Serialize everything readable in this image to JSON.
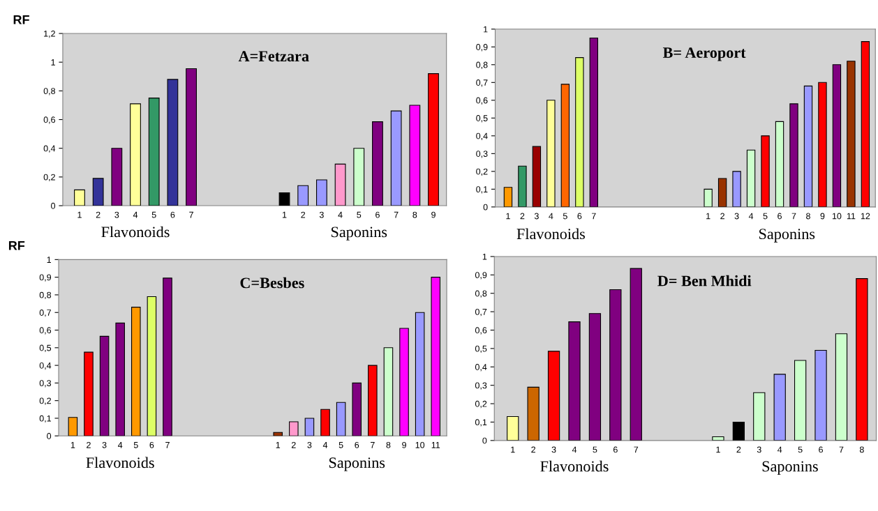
{
  "chart_data": [
    {
      "type": "bar",
      "title": "A=Fetzara",
      "ylabel": "RF",
      "categories": [
        "1",
        "2",
        "3",
        "4",
        "5",
        "6",
        "7",
        null,
        null,
        null,
        null,
        "1",
        "2",
        "3",
        "4",
        "5",
        "6",
        "7",
        "8",
        "9"
      ],
      "series": [
        {
          "name": "Flavonoids",
          "values": [
            0.11,
            0.19,
            0.4,
            0.71,
            0.75,
            0.88,
            0.955,
            null,
            null,
            null,
            null,
            null,
            null,
            null,
            null,
            null,
            null,
            null,
            null,
            null
          ],
          "colors": [
            "#ffff99",
            "#333399",
            "#800080",
            "#ffff99",
            "#339966",
            "#333399",
            "#800080",
            null,
            null,
            null,
            null,
            null,
            null,
            null,
            null,
            null,
            null,
            null,
            null,
            null
          ]
        },
        {
          "name": "Saponins",
          "values": [
            null,
            null,
            null,
            null,
            null,
            null,
            null,
            null,
            null,
            null,
            null,
            0.09,
            0.14,
            0.18,
            0.29,
            0.4,
            0.585,
            0.66,
            0.7,
            0.92
          ],
          "colors": [
            null,
            null,
            null,
            null,
            null,
            null,
            null,
            null,
            null,
            null,
            null,
            "#000000",
            "#9999ff",
            "#9999ff",
            "#ff99cc",
            "#ccffcc",
            "#800080",
            "#9999ff",
            "#ff00ff",
            "#ff0000"
          ]
        }
      ],
      "ylim": [
        0,
        1.2
      ],
      "yticks": [
        0,
        {
          "value": 0.2,
          "label": "0,2"
        },
        {
          "value": 0.4,
          "label": "0,4"
        },
        {
          "value": 0.6,
          "label": "0,6"
        },
        {
          "value": 0.8,
          "label": "0,8"
        },
        1,
        {
          "value": 1.2,
          "label": "1,2"
        }
      ],
      "grid": false
    },
    {
      "type": "bar",
      "title": "B= Aeroport",
      "categories": [
        "1",
        "2",
        "3",
        "4",
        "5",
        "6",
        "7",
        null,
        null,
        null,
        null,
        null,
        null,
        null,
        "1",
        "2",
        "3",
        "4",
        "5",
        "6",
        "7",
        "8",
        "9",
        "10",
        "11",
        "12"
      ],
      "series": [
        {
          "name": "Flavonoids",
          "values": [
            0.11,
            0.23,
            0.34,
            0.6,
            0.69,
            0.84,
            0.95,
            null,
            null,
            null,
            null,
            null,
            null,
            null,
            null,
            null,
            null,
            null,
            null,
            null,
            null,
            null,
            null,
            null,
            null,
            null
          ],
          "colors": [
            "#ff9900",
            "#339966",
            "#990000",
            "#ffff99",
            "#ff6600",
            "#ddff66",
            "#800080",
            null,
            null,
            null,
            null,
            null,
            null,
            null,
            null,
            null,
            null,
            null,
            null,
            null,
            null,
            null,
            null,
            null,
            null,
            null
          ]
        },
        {
          "name": "Saponins",
          "values": [
            null,
            null,
            null,
            null,
            null,
            null,
            null,
            null,
            null,
            null,
            null,
            null,
            null,
            null,
            0.1,
            0.16,
            0.2,
            0.32,
            0.4,
            0.48,
            0.58,
            0.68,
            0.7,
            0.8,
            0.82,
            0.93
          ],
          "colors": [
            null,
            null,
            null,
            null,
            null,
            null,
            null,
            null,
            null,
            null,
            null,
            null,
            null,
            null,
            "#ccffcc",
            "#993300",
            "#9999ff",
            "#ccffcc",
            "#ff0000",
            "#ccffcc",
            "#800080",
            "#9999ff",
            "#ff0000",
            "#800080",
            "#993300",
            "#ff0000"
          ]
        }
      ],
      "ylim": [
        0,
        1
      ],
      "yticks": [
        0,
        {
          "value": 0.1,
          "label": "0,1"
        },
        {
          "value": 0.2,
          "label": "0,2"
        },
        {
          "value": 0.3,
          "label": "0,3"
        },
        {
          "value": 0.4,
          "label": "0,4"
        },
        {
          "value": 0.5,
          "label": "0,5"
        },
        {
          "value": 0.6,
          "label": "0,6"
        },
        {
          "value": 0.7,
          "label": "0,7"
        },
        {
          "value": 0.8,
          "label": "0,8"
        },
        {
          "value": 0.9,
          "label": "0,9"
        },
        1
      ],
      "grid": false
    },
    {
      "type": "bar",
      "title": "C=Besbes",
      "ylabel": "RF",
      "categories": [
        "1",
        "2",
        "3",
        "4",
        "5",
        "6",
        "7",
        null,
        null,
        null,
        null,
        null,
        null,
        "1",
        "2",
        "3",
        "4",
        "5",
        "6",
        "7",
        "8",
        "9",
        "10",
        "11"
      ],
      "series": [
        {
          "name": "Flavonoids",
          "values": [
            0.105,
            0.475,
            0.565,
            0.64,
            0.73,
            0.79,
            0.895,
            null,
            null,
            null,
            null,
            null,
            null,
            null,
            null,
            null,
            null,
            null,
            null,
            null,
            null,
            null,
            null,
            null
          ],
          "colors": [
            "#ff9900",
            "#ff0000",
            "#800080",
            "#800080",
            "#ff9900",
            "#ddff66",
            "#800080",
            null,
            null,
            null,
            null,
            null,
            null,
            null,
            null,
            null,
            null,
            null,
            null,
            null,
            null,
            null,
            null,
            null
          ]
        },
        {
          "name": "Saponins",
          "values": [
            null,
            null,
            null,
            null,
            null,
            null,
            null,
            null,
            null,
            null,
            null,
            null,
            null,
            0.02,
            0.08,
            0.1,
            0.15,
            0.19,
            0.3,
            0.4,
            0.5,
            0.61,
            0.7,
            0.9
          ],
          "colors": [
            null,
            null,
            null,
            null,
            null,
            null,
            null,
            null,
            null,
            null,
            null,
            null,
            null,
            "#993300",
            "#ff99cc",
            "#9999ff",
            "#ff0000",
            "#9999ff",
            "#800080",
            "#ff0000",
            "#ccffcc",
            "#ff00ff",
            "#9999ff",
            "#ff00ff"
          ]
        }
      ],
      "ylim": [
        0,
        1
      ],
      "yticks": [
        0,
        {
          "value": 0.1,
          "label": "0,1"
        },
        {
          "value": 0.2,
          "label": "0,2"
        },
        {
          "value": 0.3,
          "label": "0,3"
        },
        {
          "value": 0.4,
          "label": "0,4"
        },
        {
          "value": 0.5,
          "label": "0,5"
        },
        {
          "value": 0.6,
          "label": "0,6"
        },
        {
          "value": 0.7,
          "label": "0,7"
        },
        {
          "value": 0.8,
          "label": "0,8"
        },
        {
          "value": 0.9,
          "label": "0,9"
        },
        1
      ],
      "grid": false
    },
    {
      "type": "bar",
      "title": "D= Ben Mhidi",
      "categories": [
        "1",
        "2",
        "3",
        "4",
        "5",
        "6",
        "7",
        null,
        null,
        null,
        "1",
        "2",
        "3",
        "4",
        "5",
        "6",
        "7",
        "8"
      ],
      "series": [
        {
          "name": "Flavonoids",
          "values": [
            0.13,
            0.29,
            0.485,
            0.645,
            0.69,
            0.82,
            0.935,
            null,
            null,
            null,
            null,
            null,
            null,
            null,
            null,
            null,
            null,
            null
          ],
          "colors": [
            "#ffff99",
            "#cc6600",
            "#ff0000",
            "#800080",
            "#800080",
            "#800080",
            "#800080",
            null,
            null,
            null,
            null,
            null,
            null,
            null,
            null,
            null,
            null,
            null
          ]
        },
        {
          "name": "Saponins",
          "values": [
            null,
            null,
            null,
            null,
            null,
            null,
            null,
            null,
            null,
            null,
            0.02,
            0.1,
            0.26,
            0.36,
            0.435,
            0.49,
            0.58,
            0.88
          ],
          "colors": [
            null,
            null,
            null,
            null,
            null,
            null,
            null,
            null,
            null,
            null,
            "#ccffcc",
            "#000000",
            "#ccffcc",
            "#9999ff",
            "#ccffcc",
            "#9999ff",
            "#ccffcc",
            "#ff0000"
          ]
        }
      ],
      "ylim": [
        0,
        1
      ],
      "yticks": [
        0,
        {
          "value": 0.1,
          "label": "0,1"
        },
        {
          "value": 0.2,
          "label": "0,2"
        },
        {
          "value": 0.3,
          "label": "0,3"
        },
        {
          "value": 0.4,
          "label": "0,4"
        },
        {
          "value": 0.5,
          "label": "0,5"
        },
        {
          "value": 0.6,
          "label": "0,6"
        },
        {
          "value": 0.7,
          "label": "0,7"
        },
        {
          "value": 0.8,
          "label": "0,8"
        },
        {
          "value": 0.9,
          "label": "0,9"
        },
        1
      ],
      "grid": false
    }
  ]
}
